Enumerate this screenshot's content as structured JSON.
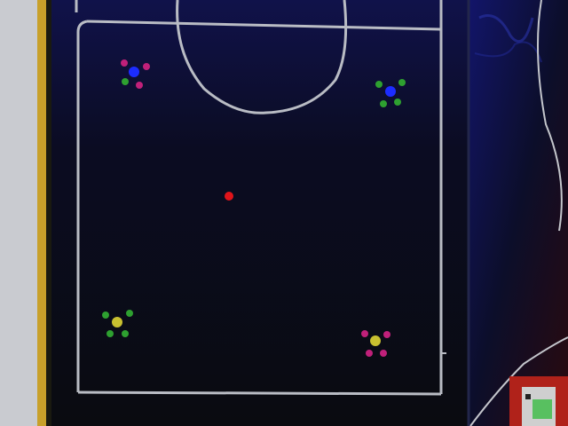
{
  "scene": {
    "colors": {
      "background_field": "#0b0d14",
      "field_lines": "#b9bcc4",
      "left_wall": "#c9cbd0",
      "left_strip": "#c8a02a",
      "right_blue_area": "#10123a",
      "right_dark_red": "#3a0d10",
      "red_ball": "#e0141a",
      "blue_marker": "#1c2cff",
      "yellow_marker": "#c8c030",
      "magenta_dot": "#c0207a",
      "green_dot": "#2ea030",
      "device_red": "#b0221a",
      "device_screen": "#58c060",
      "device_body": "#cfcfcf"
    },
    "objects": {
      "robots": [
        {
          "id": "robot-top-left",
          "team": "blue",
          "id_dots": "magenta"
        },
        {
          "id": "robot-top-right",
          "team": "blue",
          "id_dots": "green"
        },
        {
          "id": "robot-bottom-left",
          "team": "yellow",
          "id_dots": "green"
        },
        {
          "id": "robot-bottom-right",
          "team": "yellow",
          "id_dots": "magenta"
        }
      ],
      "ball": {
        "color": "red"
      }
    }
  }
}
